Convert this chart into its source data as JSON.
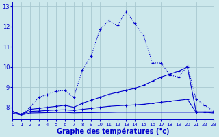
{
  "background_color": "#cce8ec",
  "grid_color": "#a8c8d0",
  "line_color": "#0000cc",
  "xlabel": "Graphe des températures (°c)",
  "xlim": [
    0,
    23
  ],
  "ylim": [
    7.4,
    13.2
  ],
  "yticks": [
    8,
    9,
    10,
    11,
    12,
    13
  ],
  "xticks": [
    0,
    1,
    2,
    3,
    4,
    5,
    6,
    7,
    8,
    9,
    10,
    11,
    12,
    13,
    14,
    15,
    16,
    17,
    18,
    19,
    20,
    21,
    22,
    23
  ],
  "line1_x": [
    0,
    1,
    2,
    3,
    4,
    5,
    6,
    7,
    8,
    9,
    10,
    11,
    12,
    13,
    14,
    15,
    16,
    17,
    18,
    19,
    20,
    21,
    22,
    23
  ],
  "line1_y": [
    7.8,
    7.65,
    8.0,
    8.5,
    8.65,
    8.8,
    8.85,
    8.5,
    9.85,
    10.55,
    11.85,
    12.3,
    12.05,
    12.75,
    12.15,
    11.55,
    10.2,
    10.2,
    9.6,
    9.5,
    10.05,
    8.4,
    8.1,
    7.8
  ],
  "line2_x": [
    0,
    1,
    2,
    3,
    4,
    5,
    6,
    7,
    8,
    9,
    10,
    11,
    12,
    13,
    14,
    15,
    16,
    17,
    18,
    19,
    20,
    21,
    22,
    23
  ],
  "line2_y": [
    7.8,
    7.65,
    7.9,
    7.95,
    8.0,
    8.05,
    8.1,
    8.0,
    8.2,
    8.35,
    8.5,
    8.65,
    8.75,
    8.85,
    8.95,
    9.1,
    9.3,
    9.5,
    9.65,
    9.8,
    10.0,
    7.78,
    7.78,
    7.78
  ],
  "line3_x": [
    0,
    1,
    2,
    3,
    4,
    5,
    6,
    7,
    8,
    9,
    10,
    11,
    12,
    13,
    14,
    15,
    16,
    17,
    18,
    19,
    20,
    21,
    22,
    23
  ],
  "line3_y": [
    7.8,
    7.65,
    7.8,
    7.82,
    7.85,
    7.87,
    7.88,
    7.85,
    7.9,
    7.95,
    8.0,
    8.05,
    8.08,
    8.1,
    8.12,
    8.15,
    8.2,
    8.25,
    8.3,
    8.35,
    8.4,
    7.76,
    7.76,
    7.76
  ],
  "line4_x": [
    0,
    1,
    2,
    3,
    4,
    5,
    6,
    7,
    8,
    9,
    10,
    11,
    12,
    13,
    14,
    15,
    16,
    17,
    18,
    19,
    20,
    21,
    22,
    23
  ],
  "line4_y": [
    7.72,
    7.62,
    7.72,
    7.73,
    7.74,
    7.75,
    7.75,
    7.73,
    7.74,
    7.74,
    7.75,
    7.75,
    7.76,
    7.76,
    7.76,
    7.76,
    7.76,
    7.76,
    7.76,
    7.76,
    7.76,
    7.76,
    7.76,
    7.72
  ]
}
